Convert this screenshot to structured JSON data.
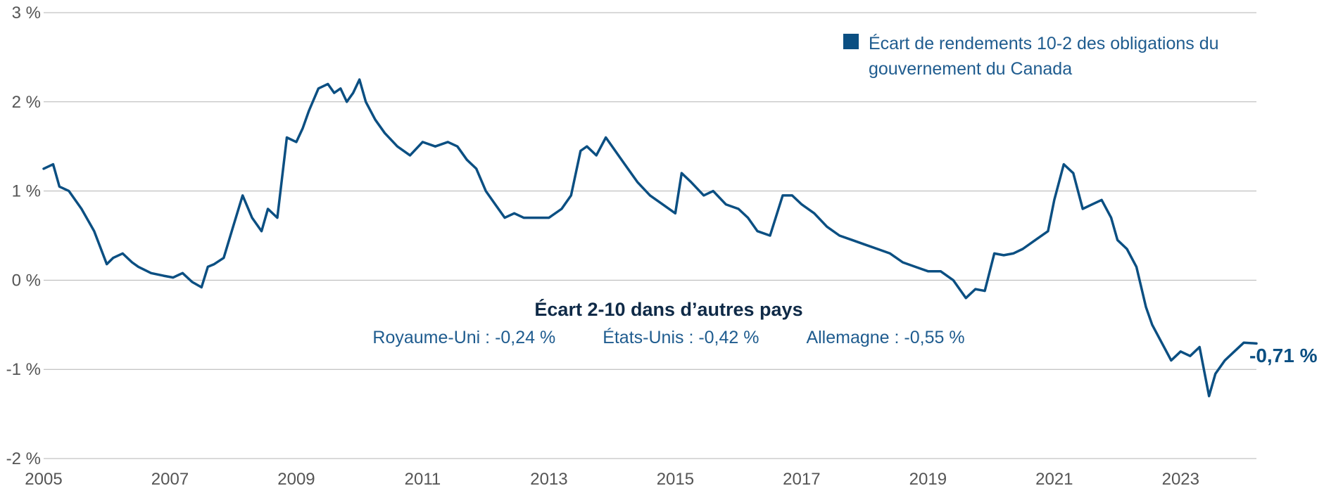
{
  "chart_data": {
    "type": "line",
    "title": "",
    "xlabel": "",
    "ylabel": "",
    "xlim": [
      2005,
      2024.2
    ],
    "ylim": [
      -2,
      3
    ],
    "x_ticks": [
      "2005",
      "2007",
      "2009",
      "2011",
      "2013",
      "2015",
      "2017",
      "2019",
      "2021",
      "2023"
    ],
    "y_ticks": [
      "3 %",
      "2 %",
      "1 %",
      "0 %",
      "-1 %",
      "-2 %"
    ],
    "legend": {
      "position": "top-right",
      "label": "Écart de rendements 10-2 des obligations du gouvernement du Canada"
    },
    "series": [
      {
        "name": "Écart de rendements 10-2 des obligations du gouvernement du Canada",
        "color": "#0b4f82",
        "x": [
          2005.0,
          2005.15,
          2005.25,
          2005.4,
          2005.6,
          2005.8,
          2006.0,
          2006.1,
          2006.25,
          2006.4,
          2006.5,
          2006.7,
          2006.9,
          2007.05,
          2007.2,
          2007.35,
          2007.5,
          2007.6,
          2007.7,
          2007.85,
          2008.0,
          2008.15,
          2008.3,
          2008.45,
          2008.55,
          2008.7,
          2008.85,
          2009.0,
          2009.1,
          2009.2,
          2009.35,
          2009.5,
          2009.6,
          2009.7,
          2009.8,
          2009.9,
          2010.0,
          2010.1,
          2010.25,
          2010.4,
          2010.6,
          2010.8,
          2011.0,
          2011.2,
          2011.4,
          2011.55,
          2011.7,
          2011.85,
          2012.0,
          2012.15,
          2012.3,
          2012.45,
          2012.6,
          2012.8,
          2013.0,
          2013.2,
          2013.35,
          2013.5,
          2013.6,
          2013.75,
          2013.9,
          2014.05,
          2014.2,
          2014.4,
          2014.6,
          2014.8,
          2015.0,
          2015.1,
          2015.25,
          2015.45,
          2015.6,
          2015.8,
          2016.0,
          2016.15,
          2016.3,
          2016.5,
          2016.7,
          2016.85,
          2017.0,
          2017.2,
          2017.4,
          2017.6,
          2017.8,
          2018.0,
          2018.2,
          2018.4,
          2018.6,
          2018.8,
          2019.0,
          2019.2,
          2019.4,
          2019.6,
          2019.75,
          2019.9,
          2020.05,
          2020.2,
          2020.35,
          2020.5,
          2020.7,
          2020.9,
          2021.0,
          2021.15,
          2021.3,
          2021.45,
          2021.6,
          2021.75,
          2021.9,
          2022.0,
          2022.15,
          2022.3,
          2022.45,
          2022.55,
          2022.7,
          2022.85,
          2023.0,
          2023.15,
          2023.3,
          2023.45,
          2023.55,
          2023.7,
          2023.85,
          2024.0,
          2024.2
        ],
        "values": [
          1.25,
          1.3,
          1.05,
          1.0,
          0.8,
          0.55,
          0.18,
          0.25,
          0.3,
          0.2,
          0.15,
          0.08,
          0.05,
          0.03,
          0.08,
          -0.02,
          -0.08,
          0.15,
          0.18,
          0.25,
          0.6,
          0.95,
          0.7,
          0.55,
          0.8,
          0.7,
          1.6,
          1.55,
          1.7,
          1.9,
          2.15,
          2.2,
          2.1,
          2.15,
          2.0,
          2.1,
          2.25,
          2.0,
          1.8,
          1.65,
          1.5,
          1.4,
          1.55,
          1.5,
          1.55,
          1.5,
          1.35,
          1.25,
          1.0,
          0.85,
          0.7,
          0.75,
          0.7,
          0.7,
          0.7,
          0.8,
          0.95,
          1.45,
          1.5,
          1.4,
          1.6,
          1.45,
          1.3,
          1.1,
          0.95,
          0.85,
          0.75,
          1.2,
          1.1,
          0.95,
          1.0,
          0.85,
          0.8,
          0.7,
          0.55,
          0.5,
          0.95,
          0.95,
          0.85,
          0.75,
          0.6,
          0.5,
          0.45,
          0.4,
          0.35,
          0.3,
          0.2,
          0.15,
          0.1,
          0.1,
          0.0,
          -0.2,
          -0.1,
          -0.12,
          0.3,
          0.28,
          0.3,
          0.35,
          0.45,
          0.55,
          0.9,
          1.3,
          1.2,
          0.8,
          0.85,
          0.9,
          0.7,
          0.45,
          0.35,
          0.15,
          -0.3,
          -0.5,
          -0.7,
          -0.9,
          -0.8,
          -0.85,
          -0.75,
          -1.3,
          -1.05,
          -0.9,
          -0.8,
          -0.7,
          -0.71
        ]
      }
    ],
    "end_label": "-0,71 %",
    "annotation": {
      "title": "Écart 2-10 dans d’autres pays",
      "items": [
        "Royaume-Uni : -0,24 %",
        "États-Unis : -0,42 %",
        "Allemagne : -0,55 %"
      ]
    }
  }
}
